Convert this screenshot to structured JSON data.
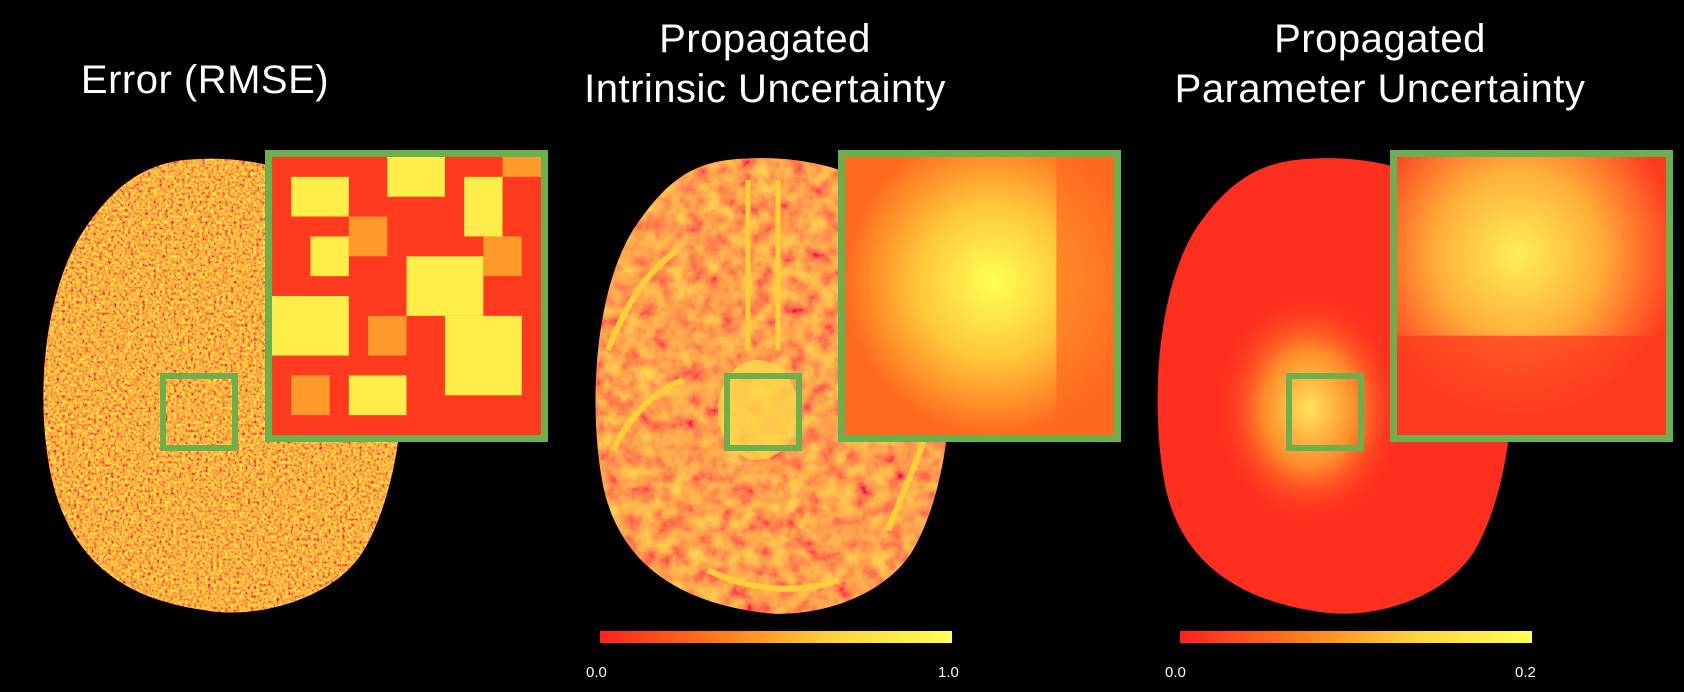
{
  "panels": [
    {
      "title_lines": [
        "Error (RMSE)"
      ],
      "colorbar": null
    },
    {
      "title_lines": [
        "Propagated",
        "Intrinsic Uncertainty"
      ],
      "colorbar": {
        "min_label": "0.0",
        "max_label": "1.0"
      }
    },
    {
      "title_lines": [
        "Propagated",
        "Parameter Uncertainty"
      ],
      "colorbar": {
        "min_label": "0.0",
        "max_label": "0.2"
      }
    }
  ],
  "colors": {
    "background": "#000000",
    "frame": "#6ab04c",
    "colormap_low": "#ff2020",
    "colormap_high": "#ffff55"
  }
}
